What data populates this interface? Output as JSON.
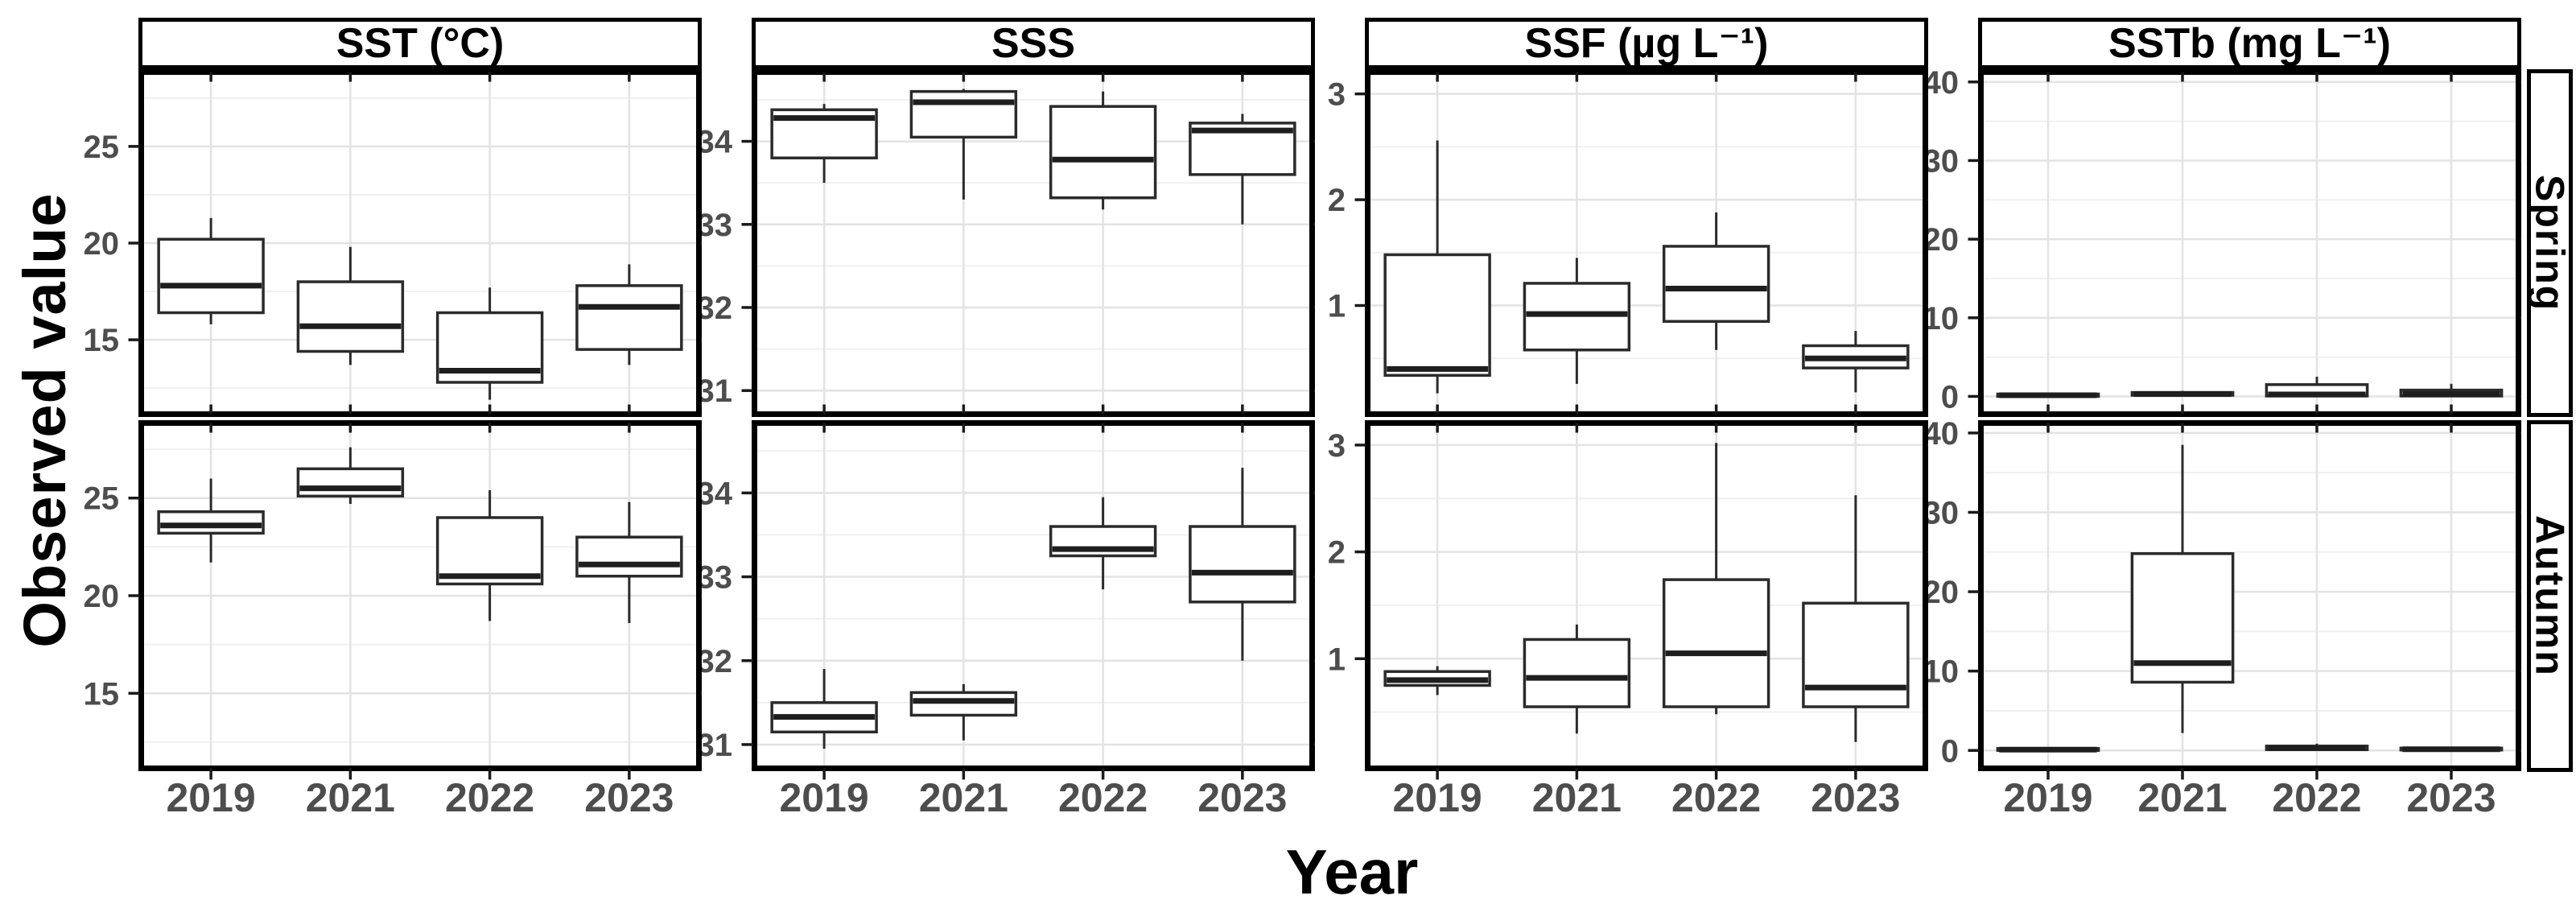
{
  "figure": {
    "y_axis_title": "Observed value",
    "x_axis_title": "Year"
  },
  "chart_data": {
    "type": "boxplot",
    "layout": "facet-grid",
    "grid": "on",
    "legend": "none",
    "xlabel": "Year",
    "ylabel": "Observed value",
    "facet_rows": [
      "Spring",
      "Autumn"
    ],
    "x_categories": [
      "2019",
      "2021",
      "2022",
      "2023"
    ],
    "columns": [
      {
        "title": "SST (°C)",
        "ylim": [
          11.3,
          28.7
        ],
        "yticks": [
          15,
          20,
          25
        ],
        "panels": [
          {
            "row": "Spring",
            "boxes": [
              {
                "x": "2019",
                "whislo": 15.8,
                "q1": 16.4,
                "med": 17.8,
                "q3": 20.2,
                "whishi": 21.3
              },
              {
                "x": "2021",
                "whislo": 13.7,
                "q1": 14.4,
                "med": 15.7,
                "q3": 18.0,
                "whishi": 19.8
              },
              {
                "x": "2022",
                "whislo": 11.9,
                "q1": 12.8,
                "med": 13.4,
                "q3": 16.4,
                "whishi": 17.7
              },
              {
                "x": "2023",
                "whislo": 13.7,
                "q1": 14.5,
                "med": 16.7,
                "q3": 17.8,
                "whishi": 18.9
              }
            ]
          },
          {
            "row": "Autumn",
            "boxes": [
              {
                "x": "2019",
                "whislo": 21.7,
                "q1": 23.2,
                "med": 23.6,
                "q3": 24.3,
                "whishi": 26.0
              },
              {
                "x": "2021",
                "whislo": 24.7,
                "q1": 25.1,
                "med": 25.5,
                "q3": 26.5,
                "whishi": 27.6
              },
              {
                "x": "2022",
                "whislo": 18.7,
                "q1": 20.6,
                "med": 21.0,
                "q3": 24.0,
                "whishi": 25.4
              },
              {
                "x": "2023",
                "whislo": 18.6,
                "q1": 21.0,
                "med": 21.6,
                "q3": 23.0,
                "whishi": 24.8
              }
            ]
          }
        ]
      },
      {
        "title": "SSS",
        "ylim": [
          30.75,
          34.8
        ],
        "yticks": [
          31,
          32,
          33,
          34
        ],
        "panels": [
          {
            "row": "Spring",
            "boxes": [
              {
                "x": "2019",
                "whislo": 33.5,
                "q1": 33.8,
                "med": 34.28,
                "q3": 34.38,
                "whishi": 34.45
              },
              {
                "x": "2021",
                "whislo": 33.3,
                "q1": 34.05,
                "med": 34.47,
                "q3": 34.6,
                "whishi": 34.63
              },
              {
                "x": "2022",
                "whislo": 33.18,
                "q1": 33.32,
                "med": 33.78,
                "q3": 34.42,
                "whishi": 34.6
              },
              {
                "x": "2023",
                "whislo": 33.0,
                "q1": 33.6,
                "med": 34.13,
                "q3": 34.22,
                "whishi": 34.33
              }
            ]
          },
          {
            "row": "Autumn",
            "boxes": [
              {
                "x": "2019",
                "whislo": 30.95,
                "q1": 31.15,
                "med": 31.33,
                "q3": 31.5,
                "whishi": 31.9
              },
              {
                "x": "2021",
                "whislo": 31.05,
                "q1": 31.35,
                "med": 31.52,
                "q3": 31.62,
                "whishi": 31.72
              },
              {
                "x": "2022",
                "whislo": 32.85,
                "q1": 33.25,
                "med": 33.33,
                "q3": 33.6,
                "whishi": 33.95
              },
              {
                "x": "2023",
                "whislo": 32.0,
                "q1": 32.7,
                "med": 33.05,
                "q3": 33.6,
                "whishi": 34.3
              }
            ]
          }
        ]
      },
      {
        "title": "SSF  (µg L⁻¹)",
        "ylim": [
          0.0,
          3.18
        ],
        "yticks": [
          1,
          2,
          3
        ],
        "panels": [
          {
            "row": "Spring",
            "boxes": [
              {
                "x": "2019",
                "whislo": 0.17,
                "q1": 0.34,
                "med": 0.4,
                "q3": 1.48,
                "whishi": 2.56
              },
              {
                "x": "2021",
                "whislo": 0.26,
                "q1": 0.58,
                "med": 0.92,
                "q3": 1.21,
                "whishi": 1.45
              },
              {
                "x": "2022",
                "whislo": 0.58,
                "q1": 0.85,
                "med": 1.16,
                "q3": 1.56,
                "whishi": 1.88
              },
              {
                "x": "2023",
                "whislo": 0.18,
                "q1": 0.41,
                "med": 0.5,
                "q3": 0.62,
                "whishi": 0.76
              }
            ]
          },
          {
            "row": "Autumn",
            "boxes": [
              {
                "x": "2019",
                "whislo": 0.66,
                "q1": 0.75,
                "med": 0.8,
                "q3": 0.88,
                "whishi": 0.93
              },
              {
                "x": "2021",
                "whislo": 0.3,
                "q1": 0.55,
                "med": 0.82,
                "q3": 1.18,
                "whishi": 1.32
              },
              {
                "x": "2022",
                "whislo": 0.48,
                "q1": 0.55,
                "med": 1.05,
                "q3": 1.74,
                "whishi": 3.02
              },
              {
                "x": "2023",
                "whislo": 0.22,
                "q1": 0.55,
                "med": 0.73,
                "q3": 1.52,
                "whishi": 2.53
              }
            ]
          }
        ]
      },
      {
        "title": "SSTb (mg L⁻¹)",
        "ylim": [
          -1.9,
          40.9
        ],
        "yticks": [
          0,
          10,
          20,
          30,
          40
        ],
        "panels": [
          {
            "row": "Spring",
            "boxes": [
              {
                "x": "2019",
                "whislo": 0.0,
                "q1": 0.0,
                "med": 0.15,
                "q3": 0.3,
                "whishi": 0.45
              },
              {
                "x": "2021",
                "whislo": 0.05,
                "q1": 0.15,
                "med": 0.3,
                "q3": 0.5,
                "whishi": 0.7
              },
              {
                "x": "2022",
                "whislo": 0.0,
                "q1": 0.05,
                "med": 0.25,
                "q3": 1.5,
                "whishi": 2.5
              },
              {
                "x": "2023",
                "whislo": 0.0,
                "q1": 0.05,
                "med": 0.3,
                "q3": 0.8,
                "whishi": 1.6
              }
            ]
          },
          {
            "row": "Autumn",
            "boxes": [
              {
                "x": "2019",
                "whislo": 0.0,
                "q1": 0.0,
                "med": 0.1,
                "q3": 0.25,
                "whishi": 0.35
              },
              {
                "x": "2021",
                "whislo": 2.2,
                "q1": 8.6,
                "med": 11.0,
                "q3": 24.8,
                "whishi": 38.5
              },
              {
                "x": "2022",
                "whislo": 0.05,
                "q1": 0.1,
                "med": 0.3,
                "q3": 0.55,
                "whishi": 0.85
              },
              {
                "x": "2023",
                "whislo": 0.0,
                "q1": 0.05,
                "med": 0.15,
                "q3": 0.3,
                "whishi": 0.45
              }
            ]
          }
        ]
      }
    ]
  }
}
